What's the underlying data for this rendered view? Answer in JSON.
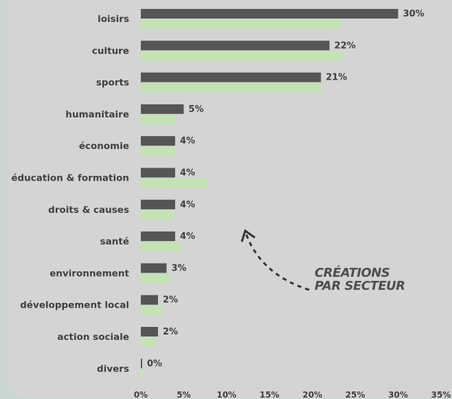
{
  "chart_data": {
    "type": "bar",
    "orientation": "horizontal",
    "categories": [
      "loisirs",
      "culture",
      "sports",
      "humanitaire",
      "économie",
      "éducation & formation",
      "droits & causes",
      "santé",
      "environnement",
      "développement local",
      "action sociale",
      "divers"
    ],
    "series": [
      {
        "values": [
          30,
          22,
          21,
          5,
          4,
          4,
          4,
          4,
          3,
          2,
          2,
          0
        ],
        "color": "#555555"
      },
      {
        "values": [
          23.3,
          23.5,
          21,
          4,
          4,
          7.9,
          3.8,
          4.7,
          3.3,
          2.5,
          1.7,
          0.4
        ],
        "color": "#c3e3b4"
      }
    ],
    "value_labels": [
      "30%",
      "22%",
      "21%",
      "5%",
      "4%",
      "4%",
      "4%",
      "4%",
      "3%",
      "2%",
      "2%",
      "0%"
    ],
    "xlim": [
      0,
      35
    ],
    "xticks": [
      0,
      5,
      10,
      15,
      20,
      25,
      30,
      35
    ],
    "xtick_labels": [
      "0%",
      "5%",
      "10%",
      "15%",
      "20%",
      "25%",
      "30%",
      "35%"
    ],
    "annotation_lines": [
      "CRÉATIONS",
      "PAR SECTEUR"
    ],
    "grid": false
  }
}
